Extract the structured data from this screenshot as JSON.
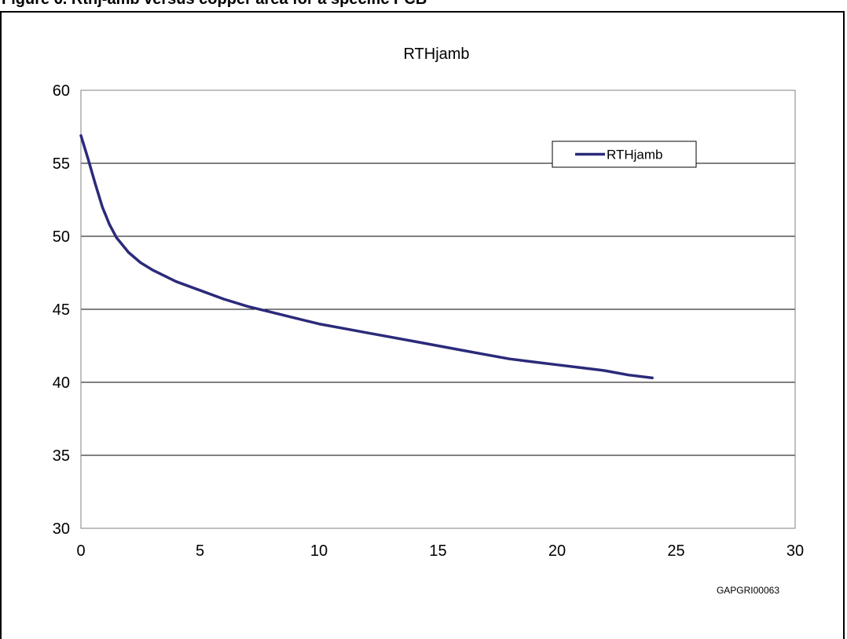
{
  "caption": {
    "text": "Figure 6. Rthj-amb versus copper area for a specific PCB"
  },
  "chart_data": {
    "type": "line",
    "title": "RTHjamb",
    "xlabel": "",
    "ylabel": "",
    "xlim": [
      0,
      30
    ],
    "ylim": [
      30,
      60
    ],
    "x_ticks": [
      0,
      5,
      10,
      15,
      20,
      25,
      30
    ],
    "y_ticks": [
      30,
      35,
      40,
      45,
      50,
      55,
      60
    ],
    "grid": "horizontal",
    "legend": "top-right",
    "series": [
      {
        "name": "RTHjamb",
        "color": "#2b2a7a",
        "x": [
          0,
          0.3,
          0.6,
          0.9,
          1.2,
          1.5,
          2.0,
          2.5,
          3.0,
          4.0,
          5.0,
          6.0,
          7.0,
          8.0,
          9.0,
          10.0,
          11.0,
          12.0,
          13.0,
          14.0,
          15.0,
          16.0,
          17.0,
          18.0,
          19.0,
          20.0,
          21.0,
          22.0,
          23.0,
          24.0
        ],
        "y": [
          56.9,
          55.3,
          53.6,
          52.0,
          50.8,
          49.9,
          48.9,
          48.2,
          47.7,
          46.9,
          46.3,
          45.7,
          45.2,
          44.8,
          44.4,
          44.0,
          43.7,
          43.4,
          43.1,
          42.8,
          42.5,
          42.2,
          41.9,
          41.6,
          41.4,
          41.2,
          41.0,
          40.8,
          40.5,
          40.3
        ]
      }
    ],
    "reference": "GAPGRI00063"
  },
  "colors": {
    "series": "#2b2a7a",
    "grid": "#000000",
    "plot_border": "#808080"
  }
}
